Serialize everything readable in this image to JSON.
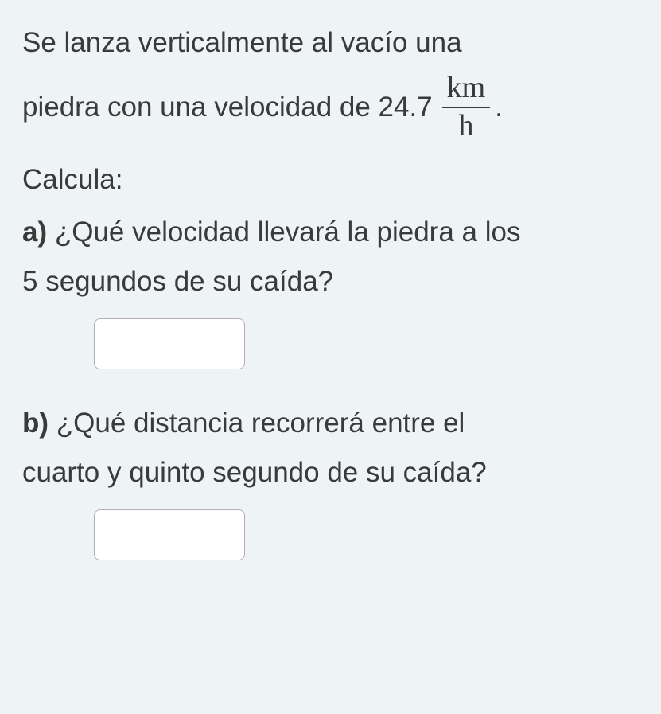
{
  "problem": {
    "intro_line1": "Se lanza verticalmente al vacío una",
    "intro_line2_prefix": "piedra con una velocidad de 24.7",
    "unit_numerator": "km",
    "unit_denominator": "h",
    "period": ".",
    "calcula": "Calcula:",
    "part_a": {
      "label": "a)",
      "question_line1": " ¿Qué velocidad llevará la piedra a los",
      "question_line2": "5 segundos de su caída?"
    },
    "part_b": {
      "label": "b)",
      "question_line1": " ¿Qué distancia recorrerá entre el",
      "question_line2": "cuarto y quinto segundo de su caída?"
    }
  },
  "inputs": {
    "answer_a": "",
    "answer_b": ""
  },
  "styles": {
    "background_color": "#eef4f5",
    "text_color": "#3a3a3a",
    "font_size_main": 35,
    "input_width": 190,
    "input_height": 64,
    "input_border_color": "#b0b0b0",
    "input_background": "#ffffff",
    "input_border_radius": 8
  }
}
